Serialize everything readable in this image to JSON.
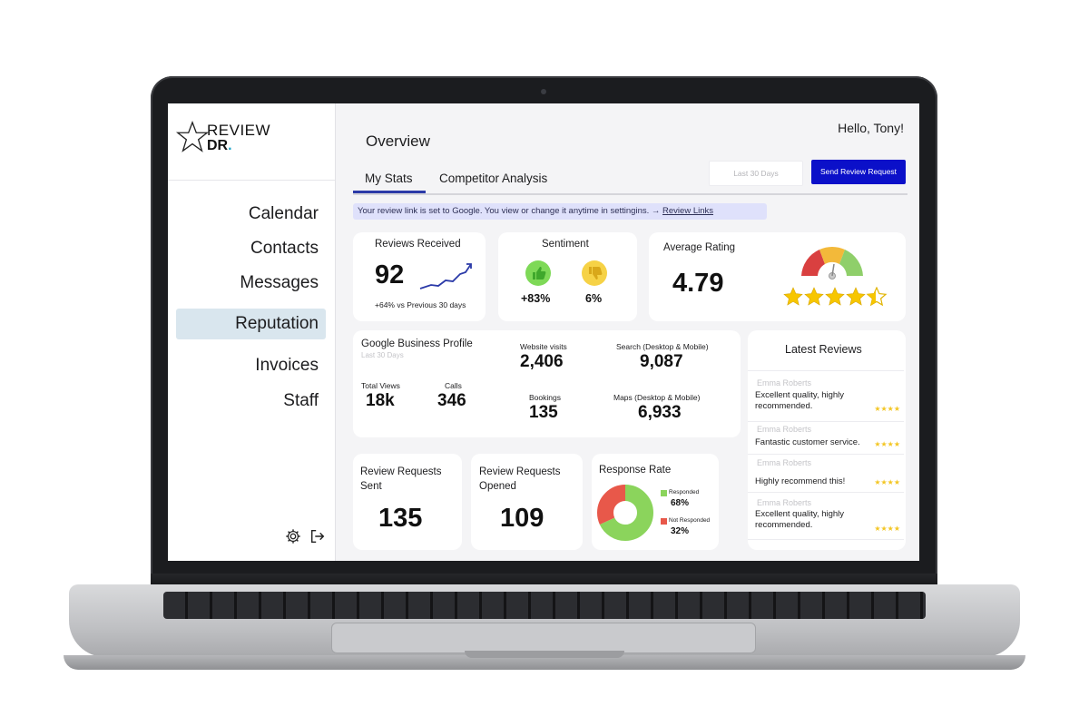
{
  "brand": {
    "line1": "REVIEW",
    "line2": "DR",
    "dot": "."
  },
  "nav": [
    {
      "label": "Calendar"
    },
    {
      "label": "Contacts"
    },
    {
      "label": "Messages"
    },
    {
      "label": "Reputation",
      "active": true
    },
    {
      "label": "Invoices"
    },
    {
      "label": "Staff"
    }
  ],
  "sidebar_icons": [
    "gear-icon",
    "logout-icon"
  ],
  "header": {
    "title": "Overview",
    "greeting": "Hello, Tony!"
  },
  "tabs": [
    {
      "label": "My Stats",
      "active": true
    },
    {
      "label": "Competitor Analysis",
      "active": false
    }
  ],
  "toolbar": {
    "date_range": "Last 30 Days",
    "send_label": "Send Review Request"
  },
  "banner": {
    "text": "Your review link is set to Google. You view or change it anytime in settingins. → ",
    "link": "Review Links"
  },
  "reviews_received": {
    "label": "Reviews Received",
    "value": "92",
    "delta": "+64% vs Previous 30 days"
  },
  "sentiment": {
    "label": "Sentiment",
    "positive": "+83%",
    "negative": "6%"
  },
  "average_rating": {
    "label": "Average Rating",
    "value": "4.79",
    "stars": 4.5
  },
  "gbp": {
    "title": "Google Business Profile",
    "subtitle": "Last 30 Days",
    "total_views": {
      "label": "Total Views",
      "value": "18k"
    },
    "calls": {
      "label": "Calls",
      "value": "346"
    },
    "website_visits": {
      "label": "Website visits",
      "value": "2,406"
    },
    "search": {
      "label": "Search (Desktop & Mobile)",
      "value": "9,087"
    },
    "bookings": {
      "label": "Bookings",
      "value": "135"
    },
    "maps": {
      "label": "Maps (Desktop & Mobile)",
      "value": "6,933"
    }
  },
  "requests_sent": {
    "label_line1": "Review Requests",
    "label_line2": "Sent",
    "value": "135"
  },
  "requests_opened": {
    "label_line1": "Review Requests",
    "label_line2": "Opened",
    "value": "109"
  },
  "response_rate": {
    "label": "Response Rate",
    "responded_label": "Responded",
    "responded_value": "68%",
    "not_responded_label": "Not Responded",
    "not_responded_value": "32%",
    "colors": {
      "responded": "#8bd45c",
      "not_responded": "#e8584a"
    }
  },
  "latest_reviews": {
    "title": "Latest Reviews",
    "items": [
      {
        "author": "Emma Roberts",
        "text": "Excellent quality, highly recommended.",
        "stars": "★★★★"
      },
      {
        "author": "Emma Roberts",
        "text": "Fantastic customer service.",
        "stars": "★★★★"
      },
      {
        "author": "Emma Roberts",
        "text": "Highly recommend this!",
        "stars": "★★★★"
      },
      {
        "author": "Emma Roberts",
        "text": "Excellent quality, highly recommended.",
        "stars": "★★★★"
      }
    ]
  },
  "colors": {
    "accent": "#0b10c9",
    "tab_underline": "#2b3aa8",
    "star": "#f3c623",
    "nav_active_bg": "#d9e6ee",
    "banner_bg": "#dfe1fb"
  }
}
